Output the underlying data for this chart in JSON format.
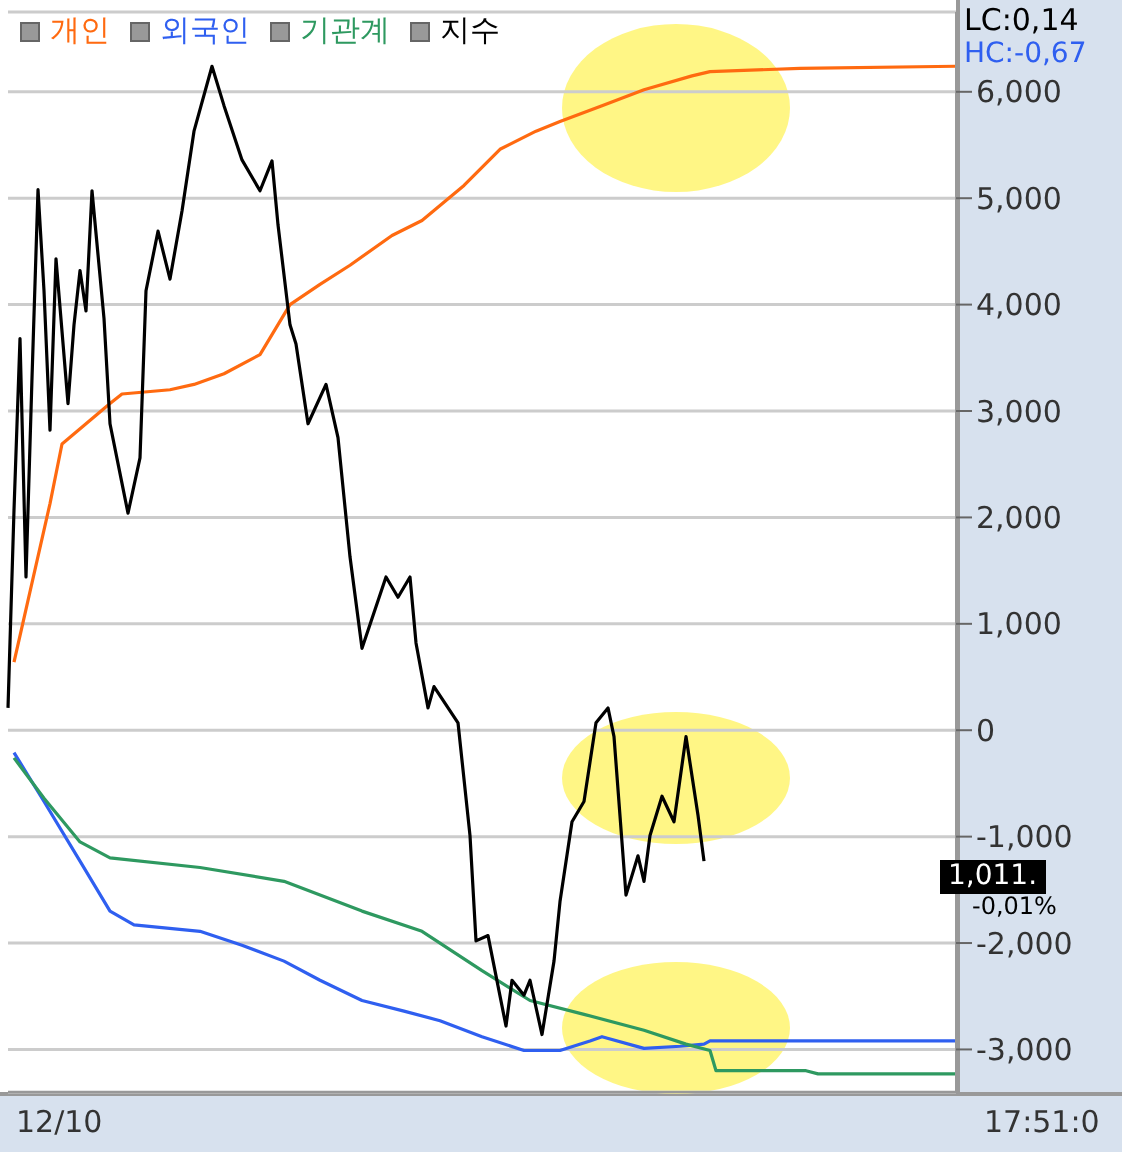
{
  "chart_data": {
    "type": "line",
    "legend": "top left",
    "grid": "y",
    "categories": [
      null,
      null,
      null,
      null,
      null,
      null,
      null,
      null,
      null,
      null,
      null,
      null,
      null,
      null,
      null,
      null,
      null,
      null,
      null,
      null,
      null,
      null,
      null,
      null,
      null,
      null,
      null,
      null,
      null,
      null,
      null,
      null,
      null,
      null,
      null,
      null,
      null,
      null,
      null,
      null,
      null,
      null,
      null,
      null,
      null,
      null,
      null,
      null,
      null,
      null,
      null,
      null,
      null,
      null,
      null,
      null,
      null,
      null,
      null,
      null,
      null,
      null,
      null,
      null,
      null,
      null,
      null,
      null,
      null,
      null,
      null,
      null,
      null,
      null,
      null,
      null,
      null,
      null,
      null,
      null,
      null,
      null,
      null,
      null,
      null,
      null,
      null,
      null,
      null,
      null,
      null,
      null,
      null,
      null,
      null,
      null,
      null,
      null,
      null,
      null,
      null,
      null,
      null,
      null,
      null,
      null,
      null,
      null,
      null,
      null,
      null,
      null,
      null,
      null,
      null,
      null,
      null,
      null,
      null,
      null,
      null,
      null,
      null,
      null,
      null,
      null,
      null,
      null,
      null,
      null,
      null,
      null,
      null,
      null,
      null,
      null,
      null,
      null,
      null,
      null,
      null,
      null,
      null,
      null,
      null,
      null,
      null,
      null,
      null,
      null,
      null,
      null,
      null,
      null,
      null,
      null,
      null,
      null,
      null
    ],
    "ylim": [
      -3400,
      6750
    ],
    "yticks": [
      {
        "value": -3000,
        "label": "-3,000"
      },
      {
        "value": -2000,
        "label": "-2,000"
      },
      {
        "value": -1000,
        "label": "-1,000"
      },
      0,
      {
        "value": 1000,
        "label": "1,000"
      },
      {
        "value": 2000,
        "label": "2,000"
      },
      {
        "value": 3000,
        "label": "3,000"
      },
      {
        "value": 4000,
        "label": "4,000"
      },
      {
        "value": 5000,
        "label": "5,000"
      },
      {
        "value": 6000,
        "label": "6,000"
      }
    ],
    "annotations": [
      "LC:0,14",
      "HC:-0,67",
      "1,011.",
      "-0,01%",
      "12/10",
      "17:51:0"
    ],
    "series": [
      {
        "name": "개인",
        "color": "#ff6a10",
        "values": [
          null,
          640,
          null,
          null,
          null,
          null,
          null,
          2130,
          null,
          2690,
          null,
          null,
          null,
          null,
          null,
          null,
          null,
          3070,
          null,
          3160,
          null,
          null,
          null,
          null,
          null,
          null,
          null,
          3200,
          null,
          null,
          null,
          3250,
          null,
          null,
          null,
          null,
          3350,
          null,
          null,
          null,
          null,
          null,
          3530,
          null,
          null,
          null,
          null,
          4000,
          null,
          null,
          null,
          null,
          4190,
          null,
          null,
          null,
          null,
          4370,
          null,
          null,
          null,
          null,
          null,
          null,
          4650,
          null,
          null,
          null,
          null,
          4790,
          null,
          null,
          null,
          null,
          null,
          null,
          5120,
          null,
          null,
          null,
          null,
          null,
          5460,
          null,
          null,
          null,
          null,
          null,
          5630,
          null,
          null,
          null,
          5720,
          null,
          null,
          null,
          null,
          null,
          null,
          5870,
          null,
          null,
          null,
          null,
          null,
          null,
          6020,
          null,
          null,
          null,
          null,
          null,
          null,
          null,
          6150,
          null,
          null,
          6190,
          null,
          null,
          null,
          null,
          null,
          null,
          null,
          null,
          null,
          null,
          null,
          null,
          null,
          null,
          6220,
          null,
          null,
          null,
          null,
          null,
          null,
          null,
          null,
          null,
          null,
          null,
          null,
          null,
          null,
          null,
          null,
          null,
          null,
          null,
          null,
          null,
          null,
          null,
          null,
          null,
          6240
        ]
      },
      {
        "name": "외국인",
        "color": "#2f5ff0",
        "values": [
          null,
          -210,
          null,
          null,
          null,
          null,
          -670,
          null,
          null,
          null,
          null,
          null,
          -1230,
          null,
          null,
          null,
          null,
          -1700,
          null,
          null,
          null,
          -1830,
          null,
          null,
          null,
          null,
          null,
          null,
          null,
          null,
          null,
          null,
          -1890,
          null,
          null,
          null,
          null,
          null,
          null,
          -2020,
          null,
          null,
          null,
          null,
          null,
          null,
          -2170,
          null,
          null,
          null,
          null,
          null,
          -2350,
          null,
          null,
          null,
          null,
          null,
          null,
          -2540,
          null,
          null,
          null,
          null,
          null,
          null,
          -2640,
          null,
          null,
          null,
          null,
          null,
          -2730,
          null,
          null,
          null,
          null,
          null,
          null,
          -2880,
          null,
          null,
          null,
          null,
          null,
          null,
          -3010,
          null,
          null,
          null,
          null,
          null,
          -3010,
          null,
          null,
          null,
          null,
          -2920,
          null,
          -2880,
          null,
          null,
          null,
          null,
          null,
          null,
          -2990,
          null,
          null,
          null,
          null,
          null,
          -2970,
          null,
          null,
          null,
          -2950,
          -2920,
          null,
          null,
          null,
          null,
          null,
          null,
          null,
          null,
          null,
          null,
          null,
          null,
          null,
          null,
          null,
          null,
          null,
          null,
          null,
          null,
          null,
          null,
          null,
          null,
          null,
          null,
          null,
          null,
          null,
          null,
          null,
          null,
          null,
          null,
          null,
          null,
          null,
          null,
          null,
          null,
          -2920
        ]
      },
      {
        "name": "기관계",
        "color": "#2e9960",
        "values": [
          null,
          -260,
          null,
          null,
          null,
          null,
          -640,
          null,
          null,
          null,
          null,
          null,
          -1050,
          null,
          null,
          null,
          null,
          -1200,
          null,
          null,
          null,
          null,
          null,
          null,
          null,
          null,
          null,
          null,
          null,
          null,
          null,
          null,
          -1290,
          null,
          null,
          null,
          null,
          null,
          null,
          null,
          null,
          null,
          null,
          null,
          null,
          null,
          -1420,
          null,
          null,
          null,
          null,
          null,
          null,
          null,
          null,
          null,
          null,
          null,
          null,
          -1700,
          null,
          null,
          null,
          null,
          null,
          null,
          null,
          null,
          null,
          -1890,
          null,
          null,
          null,
          null,
          null,
          null,
          null,
          null,
          null,
          -2260,
          null,
          null,
          null,
          null,
          null,
          null,
          null,
          -2540,
          null,
          null,
          null,
          null,
          null,
          null,
          null,
          null,
          -2670,
          null,
          null,
          null,
          null,
          null,
          null,
          null,
          null,
          null,
          -2820,
          null,
          null,
          null,
          null,
          null,
          null,
          -2950,
          null,
          null,
          null,
          -3010,
          -3200,
          null,
          null,
          null,
          null,
          null,
          null,
          null,
          null,
          null,
          null,
          null,
          null,
          null,
          null,
          -3200,
          null,
          -3230,
          null,
          null,
          null,
          null,
          null,
          null,
          null,
          null,
          null,
          null,
          null,
          null,
          null,
          null,
          null,
          null,
          null,
          null,
          null,
          null,
          null,
          null,
          -3230
        ]
      },
      {
        "name": "지수",
        "color": "#000000",
        "values": [
          210,
          2070,
          3680,
          1440,
          3310,
          5080,
          4130,
          2820,
          4430,
          null,
          3070,
          3810,
          4320,
          3940,
          5070,
          null,
          3870,
          2880,
          null,
          2320,
          2040,
          null,
          2560,
          4130,
          null,
          4690,
          null,
          4240,
          null,
          4880,
          null,
          5630,
          null,
          null,
          6240,
          null,
          5870,
          null,
          null,
          5360,
          null,
          null,
          5070,
          null,
          5350,
          4750,
          null,
          3810,
          3630,
          null,
          2880,
          null,
          null,
          3250,
          null,
          2750,
          null,
          1630,
          null,
          770,
          null,
          null,
          null,
          1440,
          null,
          1250,
          null,
          1440,
          820,
          null,
          210,
          410,
          null,
          null,
          null,
          70,
          null,
          -990,
          -1980,
          null,
          -1930,
          null,
          null,
          -2780,
          -2350,
          null,
          -2490,
          -2350,
          null,
          -2860,
          null,
          -2170,
          -1610,
          null,
          -860,
          null,
          -670,
          null,
          70,
          null,
          210,
          -60,
          null,
          -1550,
          null,
          -1180,
          -1420,
          -990,
          null,
          -620,
          null,
          -860,
          null,
          -60,
          null,
          -800,
          -1230,
          null,
          null,
          null,
          null,
          null,
          null,
          null,
          null,
          null,
          null,
          null,
          null,
          null,
          null,
          null,
          null,
          null,
          null,
          null,
          null,
          null,
          null,
          null,
          null,
          null,
          null,
          null,
          null,
          null,
          null,
          null,
          null,
          null,
          null,
          null,
          null,
          null,
          null,
          null,
          null,
          null,
          null
        ]
      }
    ]
  }
}
